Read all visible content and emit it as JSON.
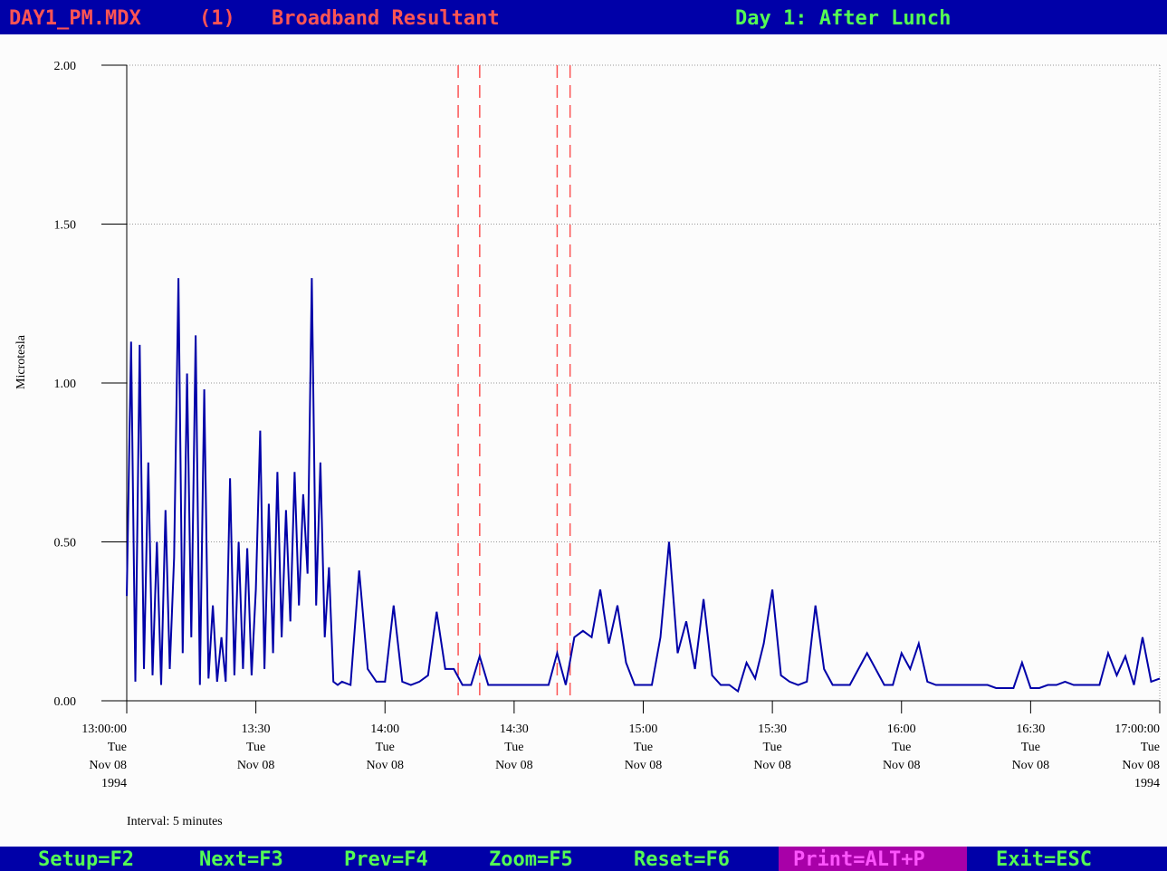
{
  "header": {
    "file": "DAY1_PM.MDX",
    "channel": "(1)",
    "measure": "Broadband Resultant",
    "caption": "Day 1: After Lunch"
  },
  "chart_data": {
    "type": "line",
    "ylabel": "Microtesla",
    "note": "Interval: 5 minutes",
    "x": [
      "13:00",
      "13:01",
      "13:02",
      "13:03",
      "13:04",
      "13:05",
      "13:06",
      "13:07",
      "13:08",
      "13:09",
      "13:10",
      "13:11",
      "13:12",
      "13:13",
      "13:14",
      "13:15",
      "13:16",
      "13:17",
      "13:18",
      "13:19",
      "13:20",
      "13:21",
      "13:22",
      "13:23",
      "13:24",
      "13:25",
      "13:26",
      "13:27",
      "13:28",
      "13:29",
      "13:30",
      "13:31",
      "13:32",
      "13:33",
      "13:34",
      "13:35",
      "13:36",
      "13:37",
      "13:38",
      "13:39",
      "13:40",
      "13:41",
      "13:42",
      "13:43",
      "13:44",
      "13:45",
      "13:46",
      "13:47",
      "13:48",
      "13:49",
      "13:50",
      "13:52",
      "13:54",
      "13:56",
      "13:58",
      "14:00",
      "14:02",
      "14:04",
      "14:06",
      "14:08",
      "14:10",
      "14:12",
      "14:14",
      "14:16",
      "14:18",
      "14:20",
      "14:22",
      "14:24",
      "14:26",
      "14:28",
      "14:30",
      "14:32",
      "14:34",
      "14:36",
      "14:38",
      "14:40",
      "14:42",
      "14:44",
      "14:46",
      "14:48",
      "14:50",
      "14:52",
      "14:54",
      "14:56",
      "14:58",
      "15:00",
      "15:02",
      "15:04",
      "15:06",
      "15:08",
      "15:10",
      "15:12",
      "15:14",
      "15:16",
      "15:18",
      "15:20",
      "15:22",
      "15:24",
      "15:26",
      "15:28",
      "15:30",
      "15:32",
      "15:34",
      "15:36",
      "15:38",
      "15:40",
      "15:42",
      "15:44",
      "15:46",
      "15:48",
      "15:50",
      "15:52",
      "15:54",
      "15:56",
      "15:58",
      "16:00",
      "16:02",
      "16:04",
      "16:06",
      "16:08",
      "16:10",
      "16:12",
      "16:14",
      "16:16",
      "16:18",
      "16:20",
      "16:22",
      "16:24",
      "16:26",
      "16:28",
      "16:30",
      "16:32",
      "16:34",
      "16:36",
      "16:38",
      "16:40",
      "16:42",
      "16:44",
      "16:46",
      "16:48",
      "16:50",
      "16:52",
      "16:54",
      "16:56",
      "16:58",
      "17:00"
    ],
    "series": [
      {
        "color": "#0000a8",
        "values": [
          0.33,
          1.13,
          0.06,
          1.12,
          0.1,
          0.75,
          0.08,
          0.5,
          0.05,
          0.6,
          0.1,
          0.45,
          1.33,
          0.15,
          1.03,
          0.2,
          1.15,
          0.05,
          0.98,
          0.07,
          0.3,
          0.06,
          0.2,
          0.06,
          0.7,
          0.08,
          0.5,
          0.1,
          0.48,
          0.08,
          0.35,
          0.85,
          0.1,
          0.62,
          0.15,
          0.72,
          0.2,
          0.6,
          0.25,
          0.72,
          0.3,
          0.65,
          0.4,
          1.33,
          0.3,
          0.75,
          0.2,
          0.42,
          0.06,
          0.05,
          0.06,
          0.05,
          0.41,
          0.1,
          0.06,
          0.06,
          0.3,
          0.06,
          0.05,
          0.06,
          0.08,
          0.28,
          0.1,
          0.1,
          0.05,
          0.05,
          0.14,
          0.05,
          0.05,
          0.05,
          0.05,
          0.05,
          0.05,
          0.05,
          0.05,
          0.15,
          0.05,
          0.2,
          0.22,
          0.2,
          0.35,
          0.18,
          0.3,
          0.12,
          0.05,
          0.05,
          0.05,
          0.2,
          0.5,
          0.15,
          0.25,
          0.1,
          0.32,
          0.08,
          0.05,
          0.05,
          0.03,
          0.12,
          0.07,
          0.18,
          0.35,
          0.08,
          0.06,
          0.05,
          0.06,
          0.3,
          0.1,
          0.05,
          0.05,
          0.05,
          0.1,
          0.15,
          0.1,
          0.05,
          0.05,
          0.15,
          0.1,
          0.18,
          0.06,
          0.05,
          0.05,
          0.05,
          0.05,
          0.05,
          0.05,
          0.05,
          0.04,
          0.04,
          0.04,
          0.12,
          0.04,
          0.04,
          0.05,
          0.05,
          0.06,
          0.05,
          0.05,
          0.05,
          0.05,
          0.15,
          0.08,
          0.14,
          0.05,
          0.2,
          0.06,
          0.07
        ]
      }
    ],
    "ylim": [
      0,
      2
    ],
    "yticks": [
      {
        "value": 0,
        "label": "0.00"
      },
      {
        "value": 0.5,
        "label": "0.50"
      },
      {
        "value": 1,
        "label": "1.00"
      },
      {
        "value": 1.5,
        "label": "1.50"
      },
      {
        "value": 2,
        "label": "2.00"
      }
    ],
    "xlim": [
      "13:00",
      "17:00"
    ],
    "xticks": [
      {
        "value": "13:00",
        "label": [
          "13:00:00",
          "Tue",
          "Nov 08",
          "1994"
        ]
      },
      {
        "value": "13:30",
        "label": [
          "13:30",
          "Tue",
          "Nov 08"
        ]
      },
      {
        "value": "14:00",
        "label": [
          "14:00",
          "Tue",
          "Nov 08"
        ]
      },
      {
        "value": "14:30",
        "label": [
          "14:30",
          "Tue",
          "Nov 08"
        ]
      },
      {
        "value": "15:00",
        "label": [
          "15:00",
          "Tue",
          "Nov 08"
        ]
      },
      {
        "value": "15:30",
        "label": [
          "15:30",
          "Tue",
          "Nov 08"
        ]
      },
      {
        "value": "16:00",
        "label": [
          "16:00",
          "Tue",
          "Nov 08"
        ]
      },
      {
        "value": "16:30",
        "label": [
          "16:30",
          "Tue",
          "Nov 08"
        ]
      },
      {
        "value": "17:00",
        "label": [
          "17:00:00",
          "Tue",
          "Nov 08",
          "1994"
        ]
      }
    ],
    "markers": {
      "color": "#fc5454",
      "x": [
        "14:17",
        "14:22",
        "14:40",
        "14:43"
      ]
    },
    "grid": true
  },
  "function_keys": {
    "items": [
      "Setup=F2",
      "Next=F3",
      "Prev=F4",
      "Zoom=F5",
      "Reset=F6",
      "Print=ALT+P",
      "Exit=ESC"
    ],
    "highlight": 5
  }
}
